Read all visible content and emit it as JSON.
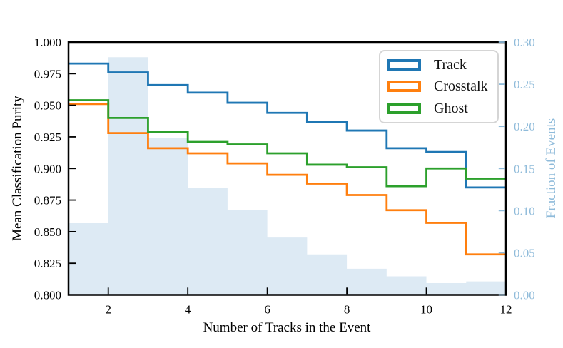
{
  "chart_data": {
    "type": "step",
    "title": "",
    "xlabel": "Number of Tracks in the Event",
    "ylabel_left": "Mean Classification Purity",
    "ylabel_right": "Fraction of Events",
    "xlim": [
      1,
      12
    ],
    "ylim_left": [
      0.8,
      1.0
    ],
    "ylim_right": [
      0.0,
      0.3
    ],
    "xtick_values": [
      2,
      4,
      6,
      8,
      10,
      12
    ],
    "xtick_labels": [
      "2",
      "4",
      "6",
      "8",
      "10",
      "12"
    ],
    "ytick_left_values": [
      0.8,
      0.825,
      0.85,
      0.875,
      0.9,
      0.925,
      0.95,
      0.975,
      1.0
    ],
    "ytick_left_labels": [
      "0.800",
      "0.825",
      "0.850",
      "0.875",
      "0.900",
      "0.925",
      "0.950",
      "0.975",
      "1.000"
    ],
    "ytick_right_values": [
      0.0,
      0.05,
      0.1,
      0.15,
      0.2,
      0.25,
      0.3
    ],
    "ytick_right_labels": [
      "0.00",
      "0.05",
      "0.10",
      "0.15",
      "0.20",
      "0.25",
      "0.30"
    ],
    "bin_edges": [
      1,
      2,
      3,
      4,
      5,
      6,
      7,
      8,
      9,
      10,
      11,
      12
    ],
    "series": [
      {
        "name": "Track",
        "color": "#1f77b4",
        "axis": "left",
        "values": [
          0.983,
          0.976,
          0.966,
          0.96,
          0.952,
          0.944,
          0.937,
          0.93,
          0.916,
          0.913,
          0.885
        ]
      },
      {
        "name": "Crosstalk",
        "color": "#ff7f0e",
        "axis": "left",
        "values": [
          0.951,
          0.928,
          0.916,
          0.912,
          0.904,
          0.895,
          0.888,
          0.879,
          0.867,
          0.857,
          0.832
        ]
      },
      {
        "name": "Ghost",
        "color": "#2ca02c",
        "axis": "left",
        "values": [
          0.954,
          0.94,
          0.929,
          0.921,
          0.919,
          0.912,
          0.903,
          0.901,
          0.886,
          0.9,
          0.892
        ]
      }
    ],
    "histogram": {
      "label": "Fraction of Events",
      "axis": "right",
      "fill_color": "#ddeaf4",
      "values": [
        0.085,
        0.282,
        0.186,
        0.127,
        0.101,
        0.068,
        0.048,
        0.031,
        0.022,
        0.014,
        0.016
      ]
    },
    "legend": {
      "position": "upper right",
      "entries": [
        "Track",
        "Crosstalk",
        "Ghost"
      ]
    },
    "style": {
      "spine_color": "#000000",
      "left_tick_color": "#000000",
      "right_axis_color": "#8fbbda",
      "grid": false
    }
  }
}
